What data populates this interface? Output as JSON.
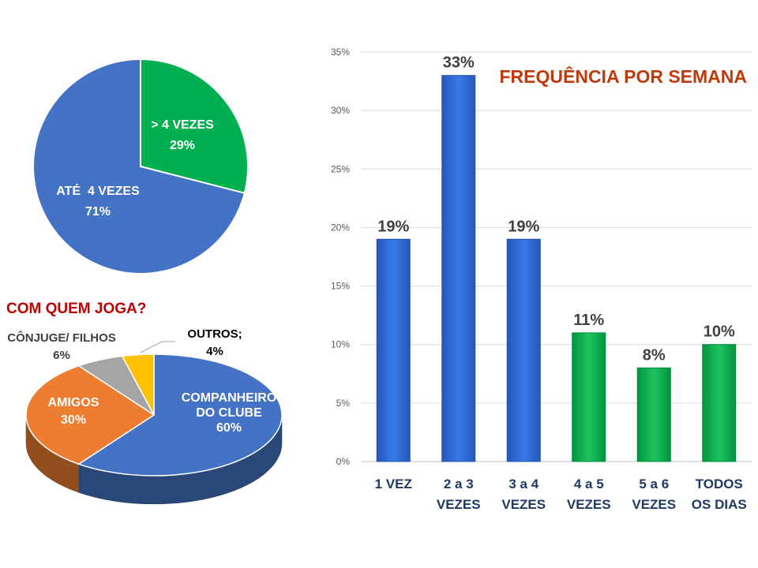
{
  "chart_data": [
    {
      "type": "pie",
      "title": "",
      "slices": [
        {
          "label": "> 4 VEZES",
          "value_label": "29%",
          "value": 29,
          "color": "#00b050"
        },
        {
          "label": "ATÉ  4 VEZES",
          "value_label": "71%",
          "value": 71,
          "color": "#4472c4"
        }
      ]
    },
    {
      "type": "pie",
      "title": "COM QUEM JOGA?",
      "style": "3d",
      "slices": [
        {
          "label": "COMPANHEIRO DO CLUBE",
          "label_lines": [
            "COMPANHEIRO",
            "DO CLUBE"
          ],
          "value_label": "60%",
          "value": 60,
          "color": "#4472c4"
        },
        {
          "label": "AMIGOS",
          "label_lines": [
            "AMIGOS"
          ],
          "value_label": "30%",
          "value": 30,
          "color": "#ed7d31"
        },
        {
          "label": "CÔNJUGE/ FILHOS",
          "label_lines": [
            "CÔNJUGE/ FILHOS"
          ],
          "value_label": "6%",
          "value": 6,
          "color": "#a5a5a5"
        },
        {
          "label": "OUTROS;",
          "label_lines": [
            "OUTROS;"
          ],
          "value_label": "4%",
          "value": 4,
          "color": "#ffc000"
        }
      ]
    },
    {
      "type": "bar",
      "title": "FREQUÊNCIA POR SEMANA",
      "xlabel": "",
      "ylabel": "",
      "ylim": [
        0,
        35
      ],
      "yticks": [
        "0%",
        "5%",
        "10%",
        "15%",
        "20%",
        "25%",
        "30%",
        "35%"
      ],
      "grid": true,
      "categories": [
        {
          "lines": [
            "1 VEZ"
          ]
        },
        {
          "lines": [
            "2 a 3",
            "VEZES"
          ]
        },
        {
          "lines": [
            "3 a 4",
            "VEZES"
          ]
        },
        {
          "lines": [
            "4 a 5",
            "VEZES"
          ]
        },
        {
          "lines": [
            "5 a 6",
            "VEZES"
          ]
        },
        {
          "lines": [
            "TODOS",
            "OS DIAS"
          ]
        }
      ],
      "values": [
        19,
        33,
        19,
        11,
        8,
        10
      ],
      "value_labels": [
        "19%",
        "33%",
        "19%",
        "11%",
        "8%",
        "10%"
      ],
      "colors": [
        "#2f6fdc",
        "#2f6fdc",
        "#2f6fdc",
        "#00b050",
        "#00b050",
        "#00b050"
      ]
    }
  ]
}
